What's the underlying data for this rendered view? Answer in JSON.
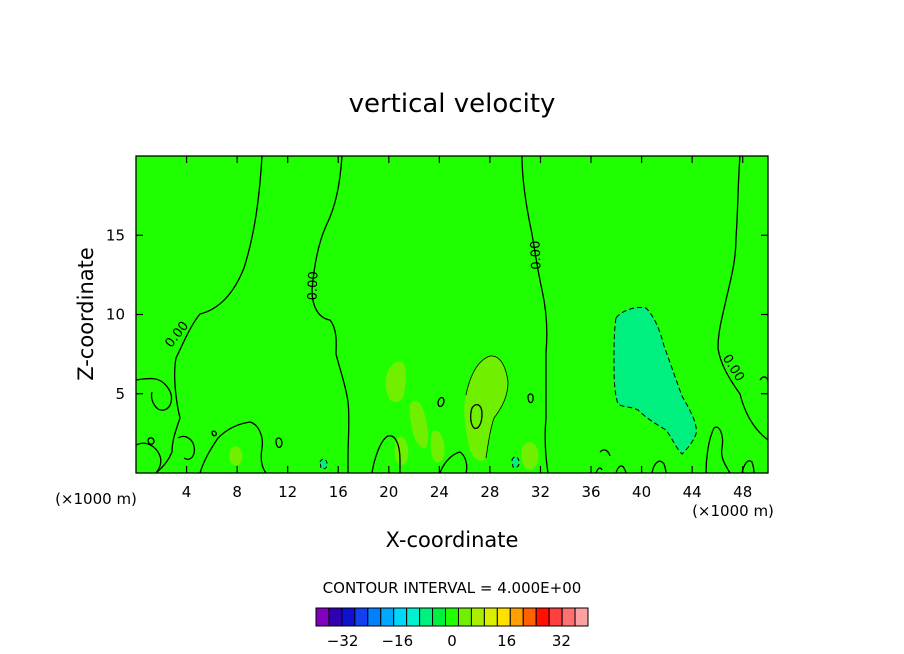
{
  "chart_data": {
    "type": "contour",
    "title": "vertical velocity",
    "xlabel": "X-coordinate",
    "ylabel": "Z-coordinate",
    "x_unit": "(×1000 m)",
    "x_unit_right": "(×1000 m)",
    "xlim": [
      0,
      50
    ],
    "ylim": [
      0,
      20
    ],
    "xticks": [
      4,
      8,
      12,
      16,
      20,
      24,
      28,
      32,
      36,
      40,
      44,
      48
    ],
    "yticks": [
      5,
      10,
      15
    ],
    "contour_label": "0.00",
    "contour_interval_text": "CONTOUR INTERVAL = 4.000E+00",
    "contour_interval": 4.0,
    "colorbar": {
      "levels": [
        -36,
        -32,
        -28,
        -24,
        -20,
        -16,
        -12,
        -8,
        -4,
        0,
        4,
        8,
        12,
        16,
        20,
        24,
        28,
        32,
        36
      ],
      "tick_labels": [
        "−32",
        "−16",
        "0",
        "16",
        "32"
      ],
      "tick_values": [
        -32,
        -16,
        0,
        16,
        32
      ],
      "colors": [
        "#8000c0",
        "#3000b0",
        "#1010d0",
        "#1040f0",
        "#0080ff",
        "#00a8ff",
        "#00d8f8",
        "#00f0d0",
        "#00f080",
        "#00f040",
        "#20ff00",
        "#70f000",
        "#a8f000",
        "#d8f000",
        "#ffe000",
        "#ffa000",
        "#ff6000",
        "#ff1000",
        "#ff4040",
        "#ff7070",
        "#ffa0a0"
      ]
    },
    "background_color": "#20ff00",
    "regions": [
      {
        "name": "negative-updraft-region",
        "value_range": [
          -8,
          -4
        ],
        "color": "#00f080",
        "x_range": [
          38,
          44
        ],
        "z_range": [
          1.5,
          10.5
        ]
      },
      {
        "name": "positive-plume-28",
        "value_range": [
          4,
          8
        ],
        "color": "#70f000",
        "x_range": [
          23.5,
          30
        ],
        "z_range": [
          1,
          7
        ]
      },
      {
        "name": "positive-plume-20",
        "value_range": [
          4,
          8
        ],
        "color": "#70f000",
        "x_range": [
          19.5,
          23
        ],
        "z_range": [
          1,
          7
        ]
      }
    ],
    "grid": false
  }
}
